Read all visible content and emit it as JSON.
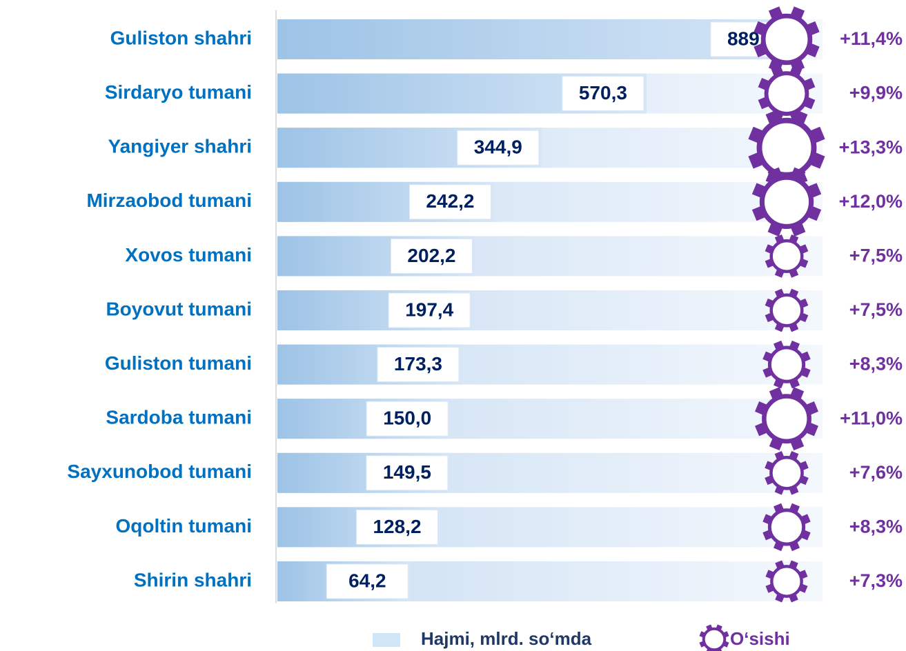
{
  "chart_data": {
    "type": "bar",
    "categories": [
      "Guliston shahri",
      "Sirdaryo tumani",
      "Yangiyer shahri",
      "Mirzaobod tumani",
      "Xovos tumani",
      "Boyovut tumani",
      "Guliston tumani",
      "Sardoba tumani",
      "Sayxunobod tumani",
      "Oqoltin tumani",
      "Shirin shahri"
    ],
    "series": [
      {
        "name": "Hajmi, mlrd. so‘mda",
        "color": "#9dc3e6",
        "values": [
          889.0,
          570.3,
          344.9,
          242.2,
          202.2,
          197.4,
          173.3,
          150.0,
          149.5,
          128.2,
          64.2
        ],
        "value_labels": [
          "889,0",
          "570,3",
          "344,9",
          "242,2",
          "202,2",
          "197,4",
          "173,3",
          "150,0",
          "149,5",
          "128,2",
          "64,2"
        ]
      },
      {
        "name": "O‘sishi",
        "color": "#7030a0",
        "values": [
          11.4,
          9.9,
          13.3,
          12.0,
          7.5,
          7.5,
          8.3,
          11.0,
          7.6,
          8.3,
          7.3
        ],
        "value_labels": [
          "+11,4%",
          "+9,9%",
          "+13,3%",
          "+12,0%",
          "+7,5%",
          "+7,5%",
          "+8,3%",
          "+11,0%",
          "+7,6%",
          "+8,3%",
          "+7,3%"
        ]
      }
    ]
  }
}
